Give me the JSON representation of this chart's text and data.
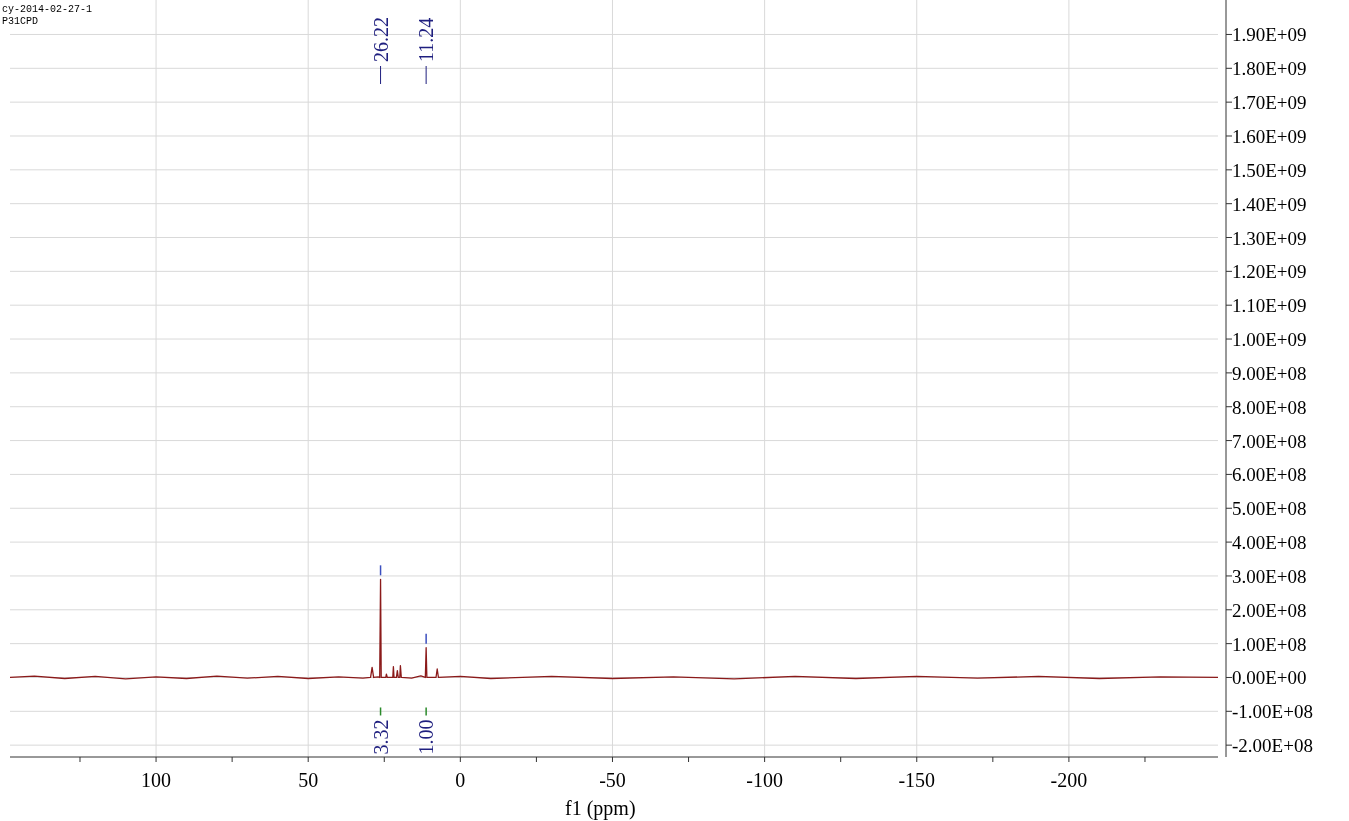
{
  "chart_data": {
    "type": "line",
    "xlabel": "f1 (ppm)",
    "annotations": [
      "cy-2014-02-27-1",
      "P31CPD",
      {
        "text": "26.22",
        "x": 26.22
      },
      {
        "text": "11.24",
        "x": 11.24
      },
      "3.32",
      "1.00"
    ],
    "series": [
      {
        "color": "#8b1a1a",
        "x": [
          148,
          140,
          130,
          120,
          110,
          100,
          90,
          80,
          70,
          60,
          50,
          40,
          32,
          29.5,
          29,
          28.5,
          27,
          26.5,
          26.22,
          26,
          24.5,
          24.3,
          24,
          22.2,
          22,
          21.8,
          21,
          20.7,
          20.4,
          19.9,
          19.7,
          19.4,
          16,
          13,
          11.5,
          11.24,
          11,
          8,
          7.6,
          7.2,
          0,
          -10,
          -30,
          -50,
          -70,
          -90,
          -110,
          -130,
          -150,
          -170,
          -190,
          -210,
          -230,
          -249
        ],
        "values": [
          0,
          4000000,
          -3000000,
          3000000,
          -4000000,
          2000000,
          -3000000,
          4000000,
          -2000000,
          3000000,
          -3000000,
          2000000,
          -2000000,
          0,
          30000000,
          0,
          2000000,
          0,
          290000000,
          0,
          0,
          10000000,
          0,
          0,
          32000000,
          0,
          0,
          20000000,
          0,
          0,
          35000000,
          0,
          -2000000,
          5000000,
          0,
          88000000,
          0,
          0,
          25000000,
          0,
          3000000,
          -3000000,
          3000000,
          -3000000,
          2000000,
          -4000000,
          3000000,
          -3000000,
          3000000,
          -2000000,
          3000000,
          -3000000,
          2000000,
          0
        ]
      }
    ],
    "xlim": [
      148,
      -249
    ],
    "xticks": [
      {
        "value": 125,
        "label": null
      },
      100,
      {
        "value": 75,
        "label": null
      },
      50,
      {
        "value": 25,
        "label": null
      },
      0,
      {
        "value": -25,
        "label": null
      },
      -50,
      {
        "value": -75,
        "label": null
      },
      -100,
      {
        "value": -125,
        "label": null
      },
      -150,
      {
        "value": -175,
        "label": null
      },
      -200,
      {
        "value": -225,
        "label": null
      }
    ],
    "ylim": [
      -235000000,
      1990000000
    ],
    "yticks": [
      {
        "value": -200000000,
        "label": "-2.00E+08"
      },
      {
        "value": -100000000,
        "label": "-1.00E+08"
      },
      {
        "value": 0,
        "label": "0.00E+00"
      },
      {
        "value": 100000000,
        "label": "1.00E+08"
      },
      {
        "value": 200000000,
        "label": "2.00E+08"
      },
      {
        "value": 300000000,
        "label": "3.00E+08"
      },
      {
        "value": 400000000,
        "label": "4.00E+08"
      },
      {
        "value": 500000000,
        "label": "5.00E+08"
      },
      {
        "value": 600000000,
        "label": "6.00E+08"
      },
      {
        "value": 700000000,
        "label": "7.00E+08"
      },
      {
        "value": 800000000,
        "label": "8.00E+08"
      },
      {
        "value": 900000000,
        "label": "9.00E+08"
      },
      {
        "value": 1000000000,
        "label": "1.00E+09"
      },
      {
        "value": 1100000000,
        "label": "1.10E+09"
      },
      {
        "value": 1200000000,
        "label": "1.20E+09"
      },
      {
        "value": 1300000000,
        "label": "1.30E+09"
      },
      {
        "value": 1400000000,
        "label": "1.40E+09"
      },
      {
        "value": 1500000000,
        "label": "1.50E+09"
      },
      {
        "value": 1600000000,
        "label": "1.60E+09"
      },
      {
        "value": 1700000000,
        "label": "1.70E+09"
      },
      {
        "value": 1800000000,
        "label": "1.80E+09"
      },
      {
        "value": 1900000000,
        "label": "1.90E+09"
      }
    ],
    "grid": true
  }
}
